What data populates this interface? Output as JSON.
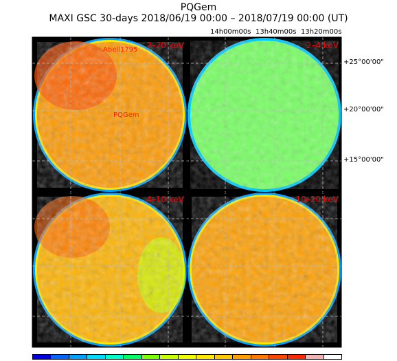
{
  "header": {
    "title": "PQGem",
    "subtitle": "MAXI GSC 30-days 2018/06/19 00:00 – 2018/07/19 00:00 (UT)"
  },
  "axes": {
    "ra_ticks": [
      "14h00m00s",
      "13h40m00s",
      "13h20m00s"
    ],
    "dec_ticks": [
      "+25°00'00\"",
      "+20°00'00\"",
      "+15°00'00\""
    ]
  },
  "panels": [
    {
      "band": "2–20 keV",
      "sources": [
        "Abell1795",
        "PQGem"
      ],
      "base_color": "#ff8c00"
    },
    {
      "band": "2–4 keV",
      "sources": [],
      "base_color": "#3cd2ff"
    },
    {
      "band": "4–10 keV",
      "sources": [],
      "base_color": "#ffb400"
    },
    {
      "band": "10–20 keV",
      "sources": [],
      "base_color": "#ffa000"
    }
  ],
  "colorbar": [
    "#0000e0",
    "#0064ff",
    "#00a0ff",
    "#00dcff",
    "#00ffc8",
    "#00ff64",
    "#78ff00",
    "#c8ff00",
    "#f0ff00",
    "#ffe600",
    "#ffc800",
    "#ffa000",
    "#ff7800",
    "#ff4600",
    "#ff2800",
    "#f0b4b4",
    "#ffffff"
  ]
}
